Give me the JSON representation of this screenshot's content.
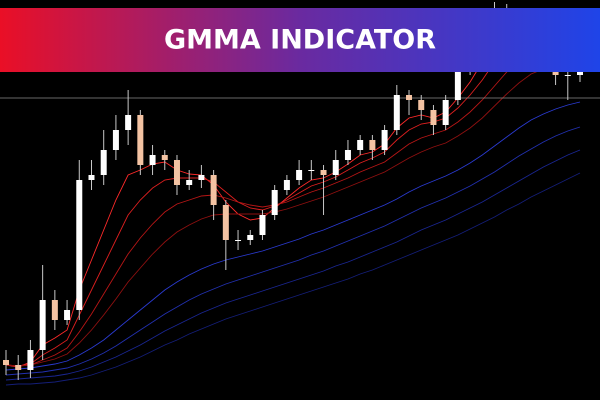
{
  "chart_data": {
    "type": "candlestick",
    "title": "GMMA INDICATOR",
    "categories": [
      null,
      null,
      null,
      null,
      null,
      null,
      null,
      null,
      null,
      null,
      null,
      null,
      null,
      null,
      null,
      null,
      null,
      null,
      null,
      null,
      null,
      null,
      null,
      null,
      null,
      null,
      null,
      null,
      null,
      null,
      null,
      null,
      null,
      null,
      null,
      null,
      null,
      null,
      null,
      null,
      null,
      null,
      null,
      null,
      null,
      null,
      null,
      null
    ],
    "open": [
      40,
      35,
      30,
      50,
      100,
      80,
      90,
      220,
      225,
      250,
      270,
      285,
      235,
      245,
      240,
      215,
      220,
      225,
      195,
      160,
      160,
      165,
      185,
      210,
      220,
      230,
      230,
      225,
      240,
      250,
      260,
      250,
      270,
      305,
      300,
      290,
      275,
      300,
      330,
      350,
      380,
      392,
      388,
      385,
      370,
      350,
      325,
      325
    ],
    "high": [
      50,
      45,
      60,
      135,
      110,
      100,
      240,
      240,
      270,
      285,
      310,
      290,
      255,
      250,
      245,
      230,
      235,
      230,
      200,
      170,
      170,
      190,
      215,
      225,
      240,
      240,
      235,
      250,
      260,
      265,
      265,
      275,
      315,
      310,
      305,
      295,
      305,
      340,
      360,
      390,
      398,
      396,
      392,
      390,
      375,
      355,
      335,
      335
    ],
    "low": [
      25,
      20,
      22,
      40,
      70,
      75,
      80,
      210,
      215,
      240,
      255,
      225,
      225,
      230,
      205,
      210,
      212,
      180,
      130,
      150,
      155,
      160,
      180,
      205,
      215,
      220,
      185,
      220,
      235,
      245,
      240,
      245,
      265,
      285,
      280,
      265,
      270,
      295,
      325,
      345,
      375,
      380,
      378,
      360,
      340,
      315,
      300,
      318
    ],
    "close": [
      35,
      30,
      50,
      100,
      80,
      90,
      220,
      225,
      250,
      270,
      285,
      235,
      245,
      240,
      215,
      220,
      225,
      195,
      160,
      160,
      165,
      185,
      210,
      220,
      230,
      230,
      225,
      240,
      250,
      260,
      250,
      270,
      305,
      300,
      290,
      275,
      300,
      330,
      350,
      380,
      392,
      388,
      385,
      370,
      350,
      325,
      325,
      328
    ],
    "up_color": "#ffffff",
    "down_color": "#f4c3a3",
    "wick_color": "#c8c8c8",
    "series": [
      {
        "color": "#ff2a2a",
        "values": [
          35,
          33,
          38,
          55,
          62,
          70,
          110,
          140,
          170,
          200,
          225,
          230,
          236,
          238,
          230,
          226,
          225,
          215,
          198,
          186,
          180,
          182,
          192,
          202,
          212,
          220,
          222,
          228,
          236,
          245,
          248,
          256,
          272,
          282,
          285,
          282,
          288,
          302,
          318,
          338,
          358,
          370,
          376,
          375,
          366,
          352,
          342,
          336
        ]
      },
      {
        "color": "#dd1f1f",
        "values": [
          35,
          34,
          36,
          45,
          52,
          60,
          85,
          110,
          135,
          160,
          185,
          200,
          212,
          220,
          222,
          222,
          222,
          218,
          208,
          198,
          192,
          190,
          194,
          200,
          207,
          214,
          218,
          223,
          230,
          237,
          242,
          248,
          260,
          270,
          276,
          278,
          282,
          292,
          305,
          320,
          338,
          352,
          362,
          366,
          364,
          356,
          348,
          342
        ]
      },
      {
        "color": "#b81616",
        "values": [
          35,
          34,
          35,
          40,
          45,
          52,
          68,
          86,
          106,
          126,
          146,
          162,
          176,
          188,
          196,
          200,
          204,
          205,
          202,
          198,
          195,
          193,
          195,
          198,
          203,
          208,
          212,
          217,
          222,
          228,
          233,
          238,
          247,
          256,
          262,
          266,
          270,
          278,
          288,
          300,
          314,
          328,
          340,
          347,
          350,
          349,
          346,
          343
        ]
      },
      {
        "color": "#8f1010",
        "values": [
          35,
          34,
          35,
          38,
          41,
          46,
          57,
          70,
          85,
          101,
          118,
          132,
          146,
          158,
          168,
          175,
          181,
          185,
          186,
          186,
          186,
          186,
          188,
          191,
          195,
          199,
          203,
          208,
          213,
          218,
          223,
          228,
          235,
          242,
          248,
          253,
          257,
          264,
          272,
          282,
          294,
          306,
          317,
          326,
          331,
          334,
          335,
          336
        ]
      },
      {
        "color": "#2a3ad0",
        "values": [
          30,
          31,
          32,
          34,
          36,
          39,
          45,
          52,
          60,
          70,
          80,
          90,
          100,
          110,
          118,
          125,
          131,
          136,
          140,
          143,
          146,
          149,
          153,
          157,
          161,
          166,
          170,
          175,
          180,
          185,
          190,
          195,
          201,
          208,
          214,
          219,
          224,
          230,
          237,
          245,
          254,
          263,
          272,
          280,
          286,
          291,
          295,
          298
        ]
      },
      {
        "color": "#2230b0",
        "values": [
          25,
          26,
          27,
          28,
          30,
          32,
          36,
          41,
          47,
          54,
          62,
          70,
          78,
          86,
          93,
          100,
          106,
          111,
          116,
          120,
          124,
          128,
          132,
          136,
          140,
          145,
          149,
          154,
          159,
          164,
          169,
          174,
          180,
          186,
          192,
          197,
          202,
          208,
          214,
          221,
          228,
          236,
          244,
          251,
          258,
          264,
          269,
          273
        ]
      },
      {
        "color": "#1a2692",
        "values": [
          20,
          21,
          22,
          23,
          24,
          26,
          29,
          33,
          38,
          43,
          49,
          55,
          62,
          69,
          75,
          81,
          87,
          92,
          97,
          101,
          105,
          109,
          113,
          117,
          121,
          125,
          129,
          134,
          138,
          143,
          148,
          153,
          158,
          164,
          170,
          175,
          180,
          186,
          192,
          198,
          205,
          212,
          219,
          226,
          233,
          239,
          245,
          250
        ]
      },
      {
        "color": "#141e78",
        "values": [
          15,
          16,
          16,
          17,
          18,
          20,
          22,
          25,
          29,
          33,
          38,
          43,
          49,
          55,
          60,
          66,
          71,
          76,
          81,
          85,
          89,
          93,
          97,
          101,
          105,
          109,
          113,
          117,
          121,
          126,
          130,
          135,
          140,
          145,
          150,
          155,
          160,
          165,
          171,
          177,
          183,
          190,
          196,
          203,
          209,
          215,
          221,
          227
        ]
      }
    ],
    "ylim": [
      0,
      400
    ],
    "hline": {
      "value": 302,
      "color": "#8a8a8a"
    },
    "banner_colors": [
      "#ea0f26",
      "#6a2aa0",
      "#1f44e8"
    ]
  }
}
